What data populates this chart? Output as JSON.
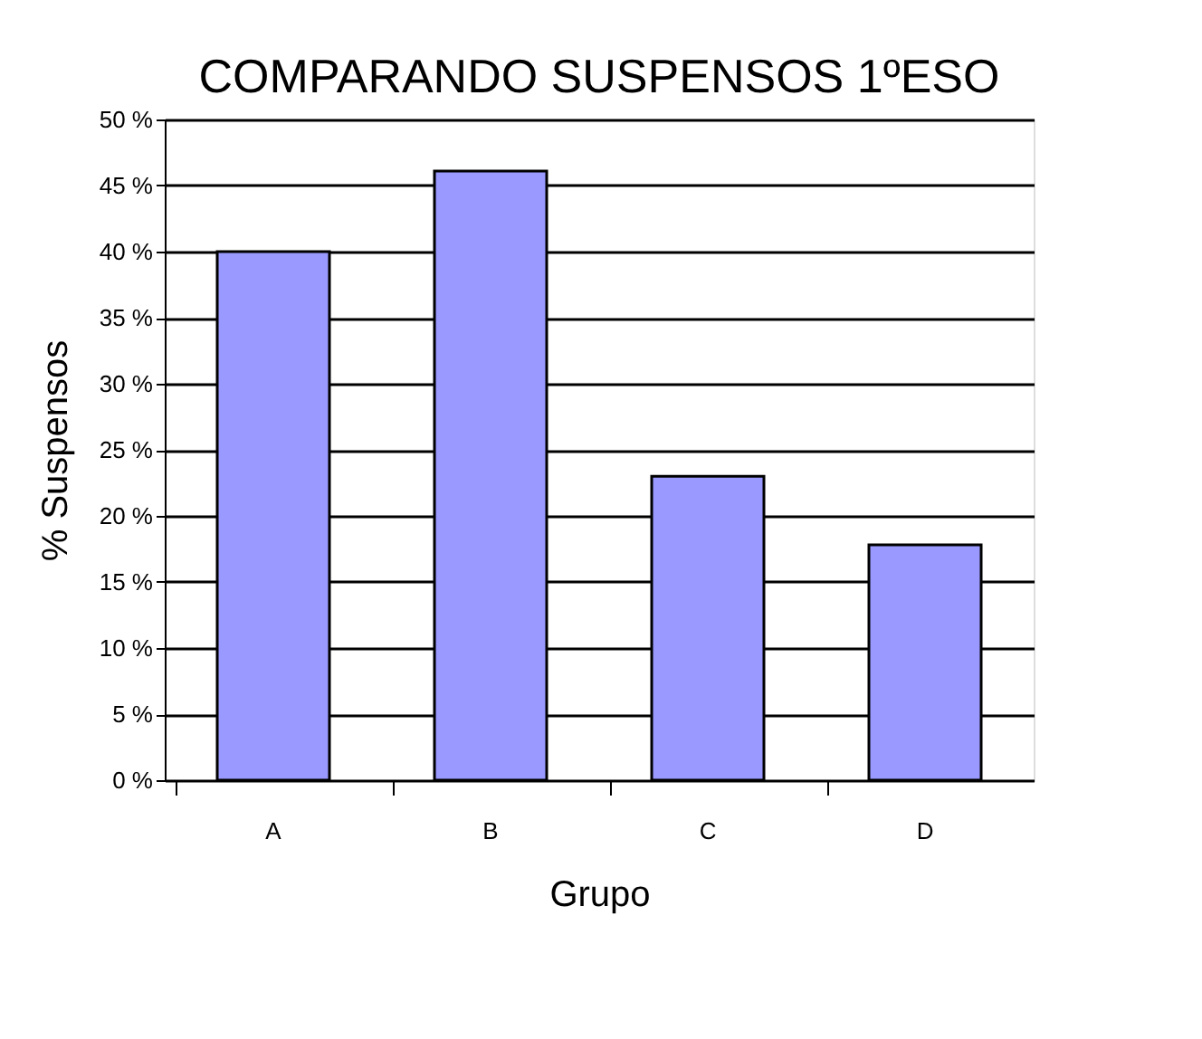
{
  "chart_data": {
    "type": "bar",
    "title": "COMPARANDO  SUSPENSOS 1ºESO",
    "xlabel": "Grupo",
    "ylabel": "% Suspensos",
    "categories": [
      "A",
      "B",
      "C",
      "D"
    ],
    "values": [
      40,
      46.1,
      23,
      17.8
    ],
    "color": "#9999ff",
    "ylim": [
      0,
      50
    ],
    "yticks": [
      {
        "value": 0,
        "label": "0 %"
      },
      {
        "value": 5,
        "label": "5 %"
      },
      {
        "value": 10,
        "label": "10 %"
      },
      {
        "value": 15,
        "label": "15 %"
      },
      {
        "value": 20,
        "label": "20 %"
      },
      {
        "value": 25,
        "label": "25 %"
      },
      {
        "value": 30,
        "label": "30 %"
      },
      {
        "value": 35,
        "label": "35 %"
      },
      {
        "value": 40,
        "label": "40 %"
      },
      {
        "value": 45,
        "label": "45 %"
      },
      {
        "value": 50,
        "label": "50 %"
      }
    ],
    "grid": "y"
  }
}
